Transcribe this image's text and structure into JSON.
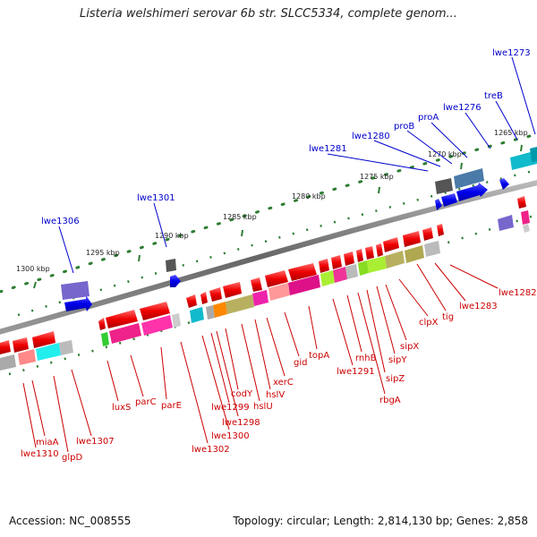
{
  "title": "Listeria welshimeri serovar 6b str. SLCC5334, complete genom...",
  "accession": "Accession: NC_008555",
  "topology": "Topology: circular; Length: 2,814,130 bp; Genes: 2,858",
  "colors": {
    "forward_label": "#0000cc",
    "reverse_label": "#cc0000",
    "tick": "#2e7d32",
    "backbone": "#777777"
  },
  "kbp_labels": [
    {
      "id": "k1300",
      "text": "1300 kbp"
    },
    {
      "id": "k1295",
      "text": "1295 kbp"
    },
    {
      "id": "k1290",
      "text": "1290 kbp"
    },
    {
      "id": "k1285",
      "text": "1285 kbp"
    },
    {
      "id": "k1280",
      "text": "1280 kbp"
    },
    {
      "id": "k1275",
      "text": "1275 kbp"
    },
    {
      "id": "k1270",
      "text": "1270 kbp"
    },
    {
      "id": "k1265",
      "text": "1265 kbp"
    }
  ],
  "forward_genes": [
    {
      "id": "lwe1273",
      "label": "lwe1273"
    },
    {
      "id": "treB",
      "label": "treB"
    },
    {
      "id": "lwe1276",
      "label": "lwe1276"
    },
    {
      "id": "proA",
      "label": "proA"
    },
    {
      "id": "proB",
      "label": "proB"
    },
    {
      "id": "lwe1280",
      "label": "lwe1280"
    },
    {
      "id": "lwe1281",
      "label": "lwe1281"
    },
    {
      "id": "lwe1301",
      "label": "lwe1301"
    },
    {
      "id": "lwe1306",
      "label": "lwe1306"
    }
  ],
  "reverse_genes": [
    {
      "id": "lwe1282",
      "label": "lwe1282"
    },
    {
      "id": "lwe1283",
      "label": "lwe1283"
    },
    {
      "id": "tig",
      "label": "tig"
    },
    {
      "id": "clpX",
      "label": "clpX"
    },
    {
      "id": "sipX",
      "label": "sipX"
    },
    {
      "id": "sipY",
      "label": "sipY"
    },
    {
      "id": "sipZ",
      "label": "sipZ"
    },
    {
      "id": "rbgA",
      "label": "rbgA"
    },
    {
      "id": "rnhB",
      "label": "rnhB"
    },
    {
      "id": "lwe1291",
      "label": "lwe1291"
    },
    {
      "id": "topA",
      "label": "topA"
    },
    {
      "id": "gid",
      "label": "gid"
    },
    {
      "id": "xerC",
      "label": "xerC"
    },
    {
      "id": "hslV",
      "label": "hslV"
    },
    {
      "id": "hslU",
      "label": "hslU"
    },
    {
      "id": "codY",
      "label": "codY"
    },
    {
      "id": "lwe1298",
      "label": "lwe1298"
    },
    {
      "id": "lwe1299",
      "label": "lwe1299"
    },
    {
      "id": "lwe1300",
      "label": "lwe1300"
    },
    {
      "id": "lwe1302",
      "label": "lwe1302"
    },
    {
      "id": "parE",
      "label": "parE"
    },
    {
      "id": "parC",
      "label": "parC"
    },
    {
      "id": "luxS",
      "label": "luxS"
    },
    {
      "id": "lwe1307",
      "label": "lwe1307"
    },
    {
      "id": "glpD",
      "label": "glpD"
    },
    {
      "id": "miaA",
      "label": "miaA"
    },
    {
      "id": "lwe1310",
      "label": "lwe1310"
    }
  ]
}
